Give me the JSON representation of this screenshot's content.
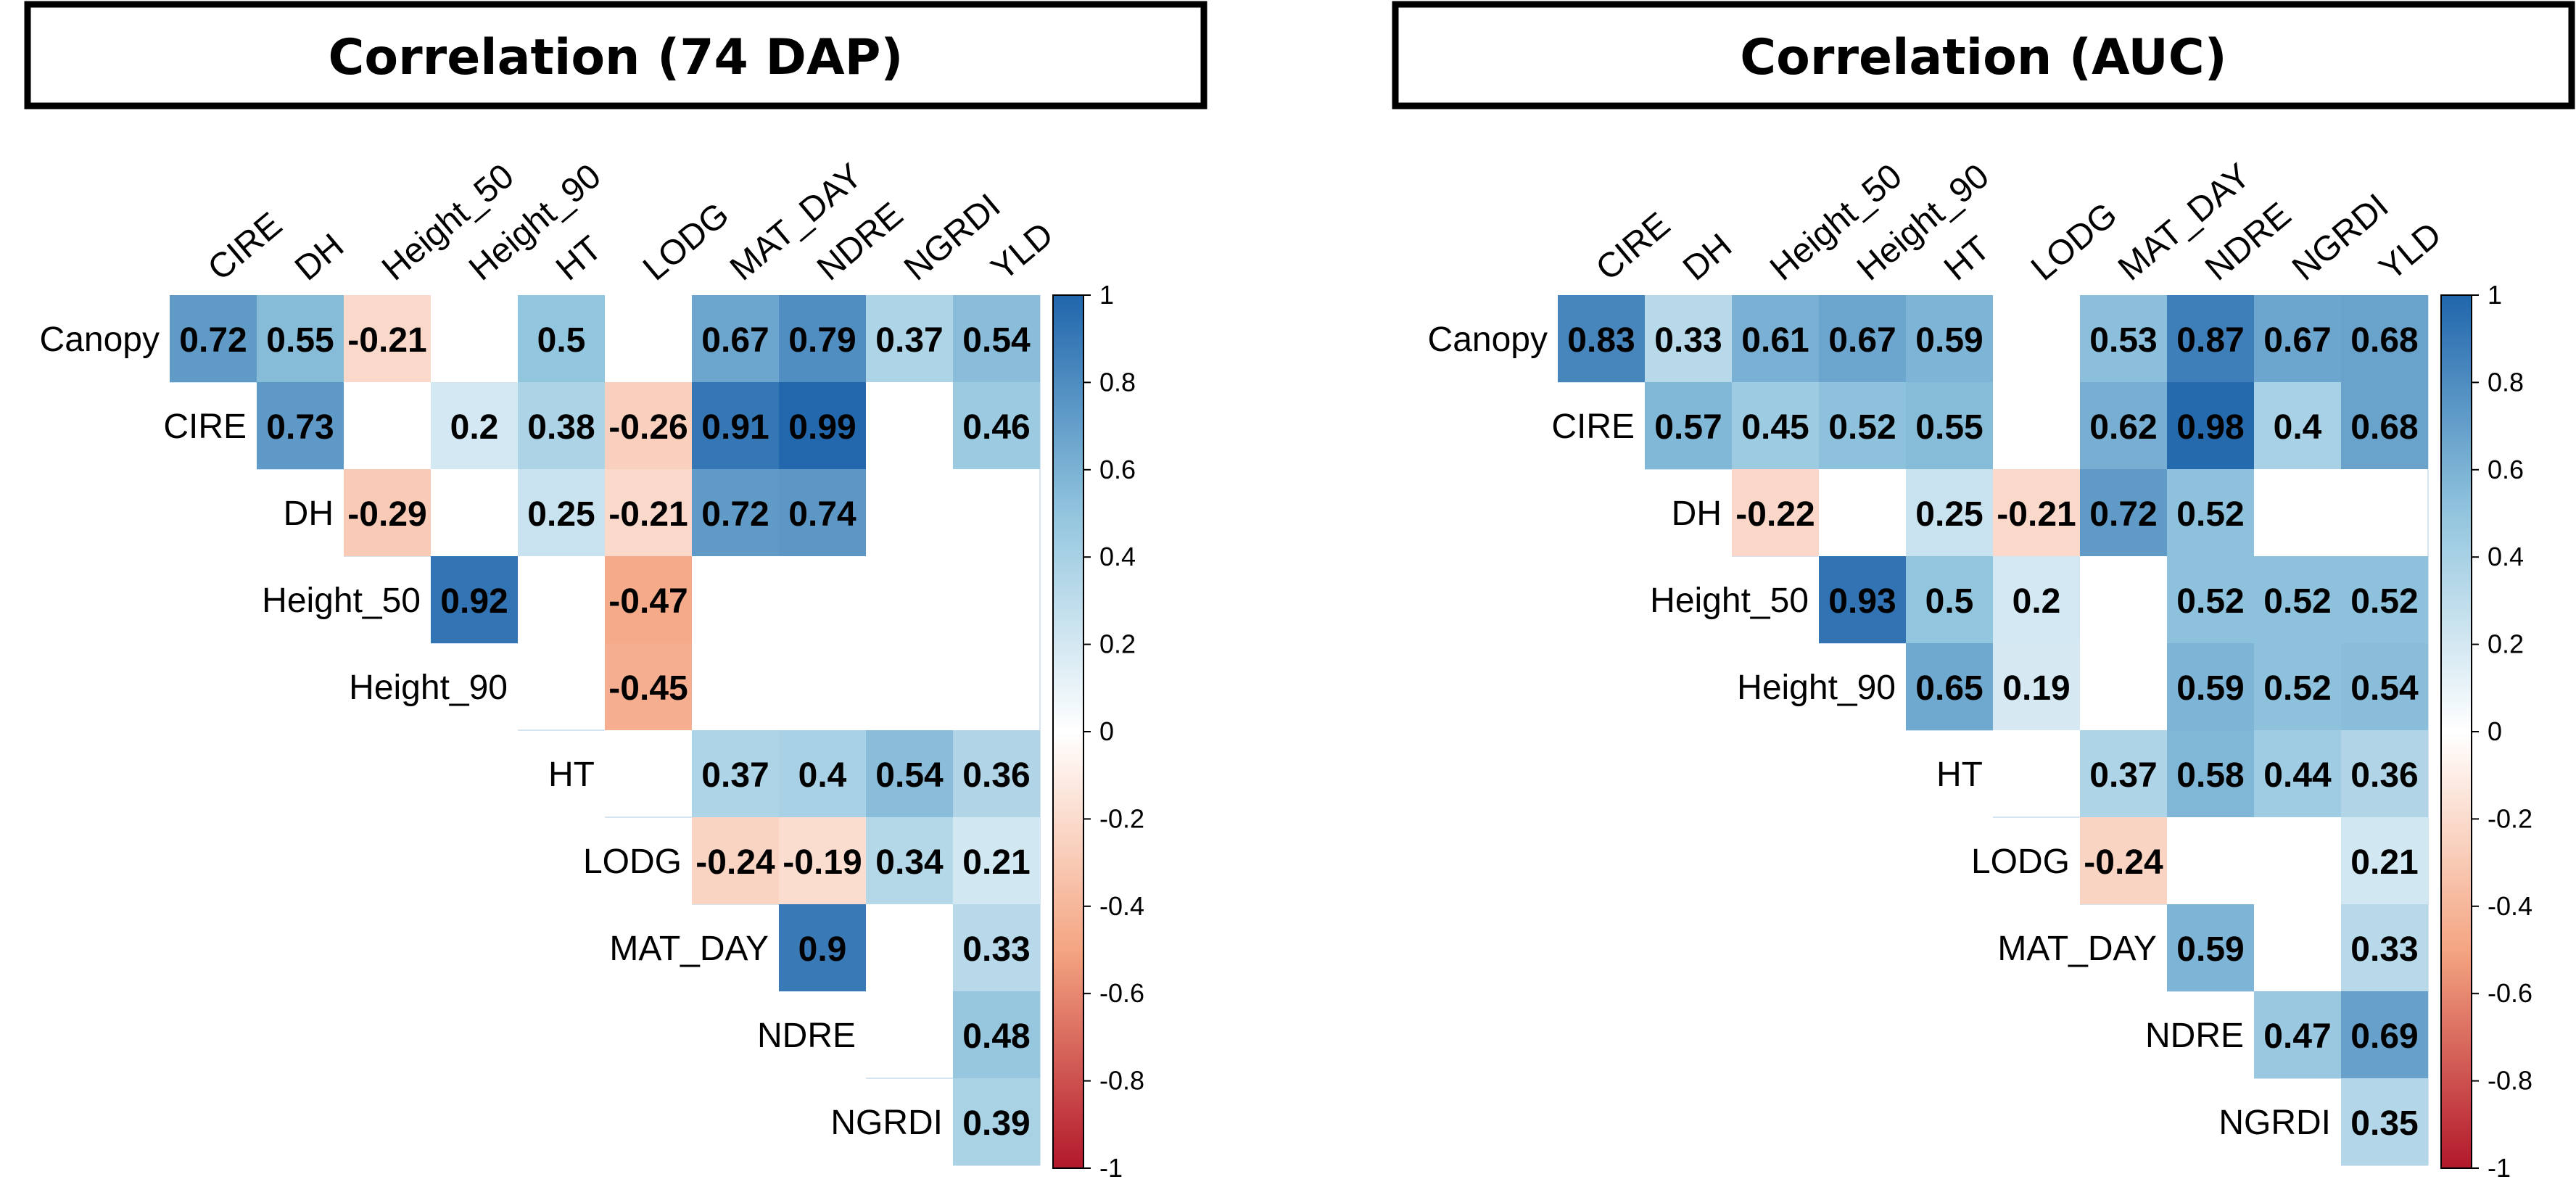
{
  "colors": {
    "negative": "#B2182B",
    "mid_negative": "#F4A582",
    "zero": "#FFFFFF",
    "mid_positive": "#92C5DE",
    "positive": "#2166AC",
    "title_border": "#000000",
    "text": "#000000"
  },
  "colorbar": {
    "ticks": [
      "1",
      "0.8",
      "0.6",
      "0.4",
      "0.2",
      "0",
      "-0.2",
      "-0.4",
      "-0.6",
      "-0.8",
      "-1"
    ]
  },
  "chart_data": [
    {
      "type": "heatmap",
      "title": "Correlation (74 DAP)",
      "column_labels": [
        "CIRE",
        "DH",
        "Height_50",
        "Height_90",
        "HT",
        "LODG",
        "MAT_DAY",
        "NDRE",
        "NGRDI",
        "YLD"
      ],
      "row_labels": [
        "Canopy",
        "CIRE",
        "DH",
        "Height_50",
        "Height_90",
        "HT",
        "LODG",
        "MAT_DAY",
        "NDRE",
        "NGRDI"
      ],
      "value_range": [
        -1,
        1
      ],
      "cells": [
        {
          "row": 0,
          "col": 0,
          "value": 0.72
        },
        {
          "row": 0,
          "col": 1,
          "value": 0.55
        },
        {
          "row": 0,
          "col": 2,
          "value": -0.21
        },
        {
          "row": 0,
          "col": 4,
          "value": 0.5
        },
        {
          "row": 0,
          "col": 6,
          "value": 0.67
        },
        {
          "row": 0,
          "col": 7,
          "value": 0.79
        },
        {
          "row": 0,
          "col": 8,
          "value": 0.37
        },
        {
          "row": 0,
          "col": 9,
          "value": 0.54
        },
        {
          "row": 1,
          "col": 1,
          "value": 0.73
        },
        {
          "row": 1,
          "col": 3,
          "value": 0.2
        },
        {
          "row": 1,
          "col": 4,
          "value": 0.38
        },
        {
          "row": 1,
          "col": 5,
          "value": -0.26
        },
        {
          "row": 1,
          "col": 6,
          "value": 0.91
        },
        {
          "row": 1,
          "col": 7,
          "value": 0.99
        },
        {
          "row": 1,
          "col": 9,
          "value": 0.46
        },
        {
          "row": 2,
          "col": 2,
          "value": -0.29
        },
        {
          "row": 2,
          "col": 4,
          "value": 0.25
        },
        {
          "row": 2,
          "col": 5,
          "value": -0.21
        },
        {
          "row": 2,
          "col": 6,
          "value": 0.72
        },
        {
          "row": 2,
          "col": 7,
          "value": 0.74
        },
        {
          "row": 3,
          "col": 3,
          "value": 0.92
        },
        {
          "row": 3,
          "col": 5,
          "value": -0.47
        },
        {
          "row": 4,
          "col": 5,
          "value": -0.45
        },
        {
          "row": 5,
          "col": 6,
          "value": 0.37
        },
        {
          "row": 5,
          "col": 7,
          "value": 0.4
        },
        {
          "row": 5,
          "col": 8,
          "value": 0.54
        },
        {
          "row": 5,
          "col": 9,
          "value": 0.36
        },
        {
          "row": 6,
          "col": 6,
          "value": -0.24
        },
        {
          "row": 6,
          "col": 7,
          "value": -0.19
        },
        {
          "row": 6,
          "col": 8,
          "value": 0.34
        },
        {
          "row": 6,
          "col": 9,
          "value": 0.21
        },
        {
          "row": 7,
          "col": 7,
          "value": 0.9
        },
        {
          "row": 7,
          "col": 9,
          "value": 0.33
        },
        {
          "row": 8,
          "col": 9,
          "value": 0.48
        },
        {
          "row": 9,
          "col": 9,
          "value": 0.39
        }
      ]
    },
    {
      "type": "heatmap",
      "title": "Correlation (AUC)",
      "column_labels": [
        "CIRE",
        "DH",
        "Height_50",
        "Height_90",
        "HT",
        "LODG",
        "MAT_DAY",
        "NDRE",
        "NGRDI",
        "YLD"
      ],
      "row_labels": [
        "Canopy",
        "CIRE",
        "DH",
        "Height_50",
        "Height_90",
        "HT",
        "LODG",
        "MAT_DAY",
        "NDRE",
        "NGRDI"
      ],
      "value_range": [
        -1,
        1
      ],
      "cells": [
        {
          "row": 0,
          "col": 0,
          "value": 0.83
        },
        {
          "row": 0,
          "col": 1,
          "value": 0.33
        },
        {
          "row": 0,
          "col": 2,
          "value": 0.61
        },
        {
          "row": 0,
          "col": 3,
          "value": 0.67
        },
        {
          "row": 0,
          "col": 4,
          "value": 0.59
        },
        {
          "row": 0,
          "col": 6,
          "value": 0.53
        },
        {
          "row": 0,
          "col": 7,
          "value": 0.87
        },
        {
          "row": 0,
          "col": 8,
          "value": 0.67
        },
        {
          "row": 0,
          "col": 9,
          "value": 0.68
        },
        {
          "row": 1,
          "col": 1,
          "value": 0.57
        },
        {
          "row": 1,
          "col": 2,
          "value": 0.45
        },
        {
          "row": 1,
          "col": 3,
          "value": 0.52
        },
        {
          "row": 1,
          "col": 4,
          "value": 0.55
        },
        {
          "row": 1,
          "col": 6,
          "value": 0.62
        },
        {
          "row": 1,
          "col": 7,
          "value": 0.98
        },
        {
          "row": 1,
          "col": 8,
          "value": 0.4
        },
        {
          "row": 1,
          "col": 9,
          "value": 0.68
        },
        {
          "row": 2,
          "col": 2,
          "value": -0.22
        },
        {
          "row": 2,
          "col": 4,
          "value": 0.25
        },
        {
          "row": 2,
          "col": 5,
          "value": -0.21
        },
        {
          "row": 2,
          "col": 6,
          "value": 0.72
        },
        {
          "row": 2,
          "col": 7,
          "value": 0.52
        },
        {
          "row": 3,
          "col": 3,
          "value": 0.93
        },
        {
          "row": 3,
          "col": 4,
          "value": 0.5
        },
        {
          "row": 3,
          "col": 5,
          "value": 0.2
        },
        {
          "row": 3,
          "col": 7,
          "value": 0.52
        },
        {
          "row": 3,
          "col": 8,
          "value": 0.52
        },
        {
          "row": 3,
          "col": 9,
          "value": 0.52
        },
        {
          "row": 4,
          "col": 4,
          "value": 0.65
        },
        {
          "row": 4,
          "col": 5,
          "value": 0.19
        },
        {
          "row": 4,
          "col": 7,
          "value": 0.59
        },
        {
          "row": 4,
          "col": 8,
          "value": 0.52
        },
        {
          "row": 4,
          "col": 9,
          "value": 0.54
        },
        {
          "row": 5,
          "col": 6,
          "value": 0.37
        },
        {
          "row": 5,
          "col": 7,
          "value": 0.58
        },
        {
          "row": 5,
          "col": 8,
          "value": 0.44
        },
        {
          "row": 5,
          "col": 9,
          "value": 0.36
        },
        {
          "row": 6,
          "col": 6,
          "value": -0.24
        },
        {
          "row": 6,
          "col": 9,
          "value": 0.21
        },
        {
          "row": 7,
          "col": 7,
          "value": 0.59
        },
        {
          "row": 7,
          "col": 9,
          "value": 0.33
        },
        {
          "row": 8,
          "col": 8,
          "value": 0.47
        },
        {
          "row": 8,
          "col": 9,
          "value": 0.69
        },
        {
          "row": 9,
          "col": 9,
          "value": 0.35
        }
      ]
    }
  ]
}
